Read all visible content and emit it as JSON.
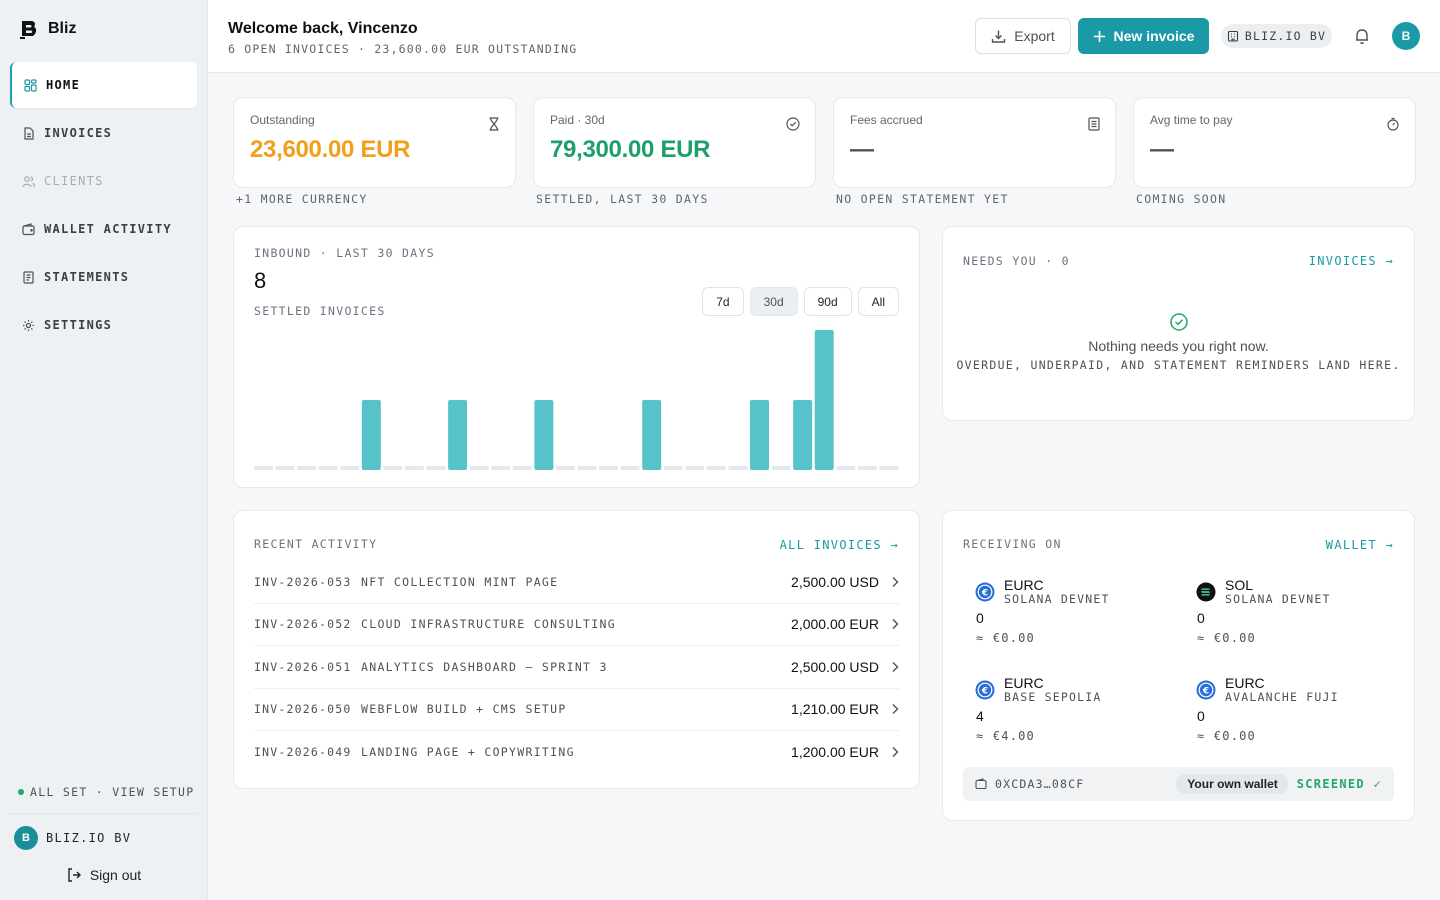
{
  "sidebar": {
    "brand": "Bliz",
    "items": [
      {
        "label": "HOME",
        "icon": "grid-icon"
      },
      {
        "label": "INVOICES",
        "icon": "document-icon"
      },
      {
        "label": "CLIENTS",
        "icon": "users-icon"
      },
      {
        "label": "WALLET ACTIVITY",
        "icon": "wallet-icon"
      },
      {
        "label": "STATEMENTS",
        "icon": "receipt-icon"
      },
      {
        "label": "SETTINGS",
        "icon": "gear-icon"
      }
    ],
    "setup": "ALL SET · VIEW SETUP",
    "org_initial": "B",
    "org_name": "BLIZ.IO BV",
    "signout": "Sign out"
  },
  "header": {
    "welcome": "Welcome back, Vincenzo",
    "subline": "6 OPEN INVOICES · 23,600.00 EUR OUTSTANDING",
    "export_label": "Export",
    "new_invoice_label": "New invoice",
    "org_pill": "BLIZ.IO BV",
    "avatar_initial": "B"
  },
  "stats": [
    {
      "label": "Outstanding",
      "value": "23,600.00 EUR",
      "sub": "+1 MORE CURRENCY",
      "color": "#f0a01a",
      "icon": "hourglass-icon"
    },
    {
      "label": "Paid · 30d",
      "value": "79,300.00 EUR",
      "sub": "SETTLED, LAST 30 DAYS",
      "color": "#1e9e6a",
      "icon": "check-circle-icon"
    },
    {
      "label": "Fees accrued",
      "value": "—",
      "sub": "NO OPEN STATEMENT YET",
      "color": "#4b5259",
      "icon": "receipt-icon"
    },
    {
      "label": "Avg time to pay",
      "value": "—",
      "sub": "COMING SOON",
      "color": "#4b5259",
      "icon": "stopwatch-icon"
    }
  ],
  "inbound": {
    "title": "INBOUND · LAST 30 DAYS",
    "count": "8",
    "subtitle": "SETTLED INVOICES",
    "ranges": [
      "7d",
      "30d",
      "90d",
      "All"
    ],
    "selected_range": "30d"
  },
  "chart_data": {
    "type": "bar",
    "values": [
      0,
      0,
      0,
      0,
      0,
      1,
      0,
      0,
      0,
      1,
      0,
      0,
      0,
      1,
      0,
      0,
      0,
      0,
      1,
      0,
      0,
      0,
      0,
      1,
      0,
      1,
      2,
      0,
      0,
      0
    ],
    "ylim": [
      0,
      2
    ],
    "bar_color": "#55c3c9",
    "empty_color": "#e5e8ec"
  },
  "needs": {
    "title": "NEEDS YOU · 0",
    "link": "INVOICES →",
    "message": "Nothing needs you right now.",
    "sub": "OVERDUE, UNDERPAID, AND STATEMENT REMINDERS LAND HERE."
  },
  "recent": {
    "title": "RECENT ACTIVITY",
    "link": "ALL INVOICES →",
    "rows": [
      {
        "id": "INV-2026-053",
        "desc": "NFT COLLECTION MINT PAGE",
        "amount": "2,500.00 USD"
      },
      {
        "id": "INV-2026-052",
        "desc": "CLOUD INFRASTRUCTURE CONSULTING",
        "amount": "2,000.00 EUR"
      },
      {
        "id": "INV-2026-051",
        "desc": "ANALYTICS DASHBOARD — SPRINT 3",
        "amount": "2,500.00 USD"
      },
      {
        "id": "INV-2026-050",
        "desc": "WEBFLOW BUILD + CMS SETUP",
        "amount": "1,210.00 EUR"
      },
      {
        "id": "INV-2026-049",
        "desc": "LANDING PAGE + COPYWRITING",
        "amount": "1,200.00 EUR"
      }
    ]
  },
  "receiving": {
    "title": "RECEIVING ON",
    "link": "WALLET →",
    "assets": [
      {
        "symbol": "EURC",
        "network": "SOLANA DEVNET",
        "balance": "0",
        "fiat": "≈ €0.00",
        "icon": "eurc-icon"
      },
      {
        "symbol": "SOL",
        "network": "SOLANA DEVNET",
        "balance": "0",
        "fiat": "≈ €0.00",
        "icon": "solana-icon"
      },
      {
        "symbol": "EURC",
        "network": "BASE SEPOLIA",
        "balance": "4",
        "fiat": "≈ €4.00",
        "icon": "eurc-icon"
      },
      {
        "symbol": "EURC",
        "network": "AVALANCHE FUJI",
        "balance": "0",
        "fiat": "≈ €0.00",
        "icon": "eurc-icon"
      }
    ],
    "wallet_address": "0XCDA3…08CF",
    "own_wallet": "Your own wallet",
    "screened": "SCREENED ✓"
  }
}
